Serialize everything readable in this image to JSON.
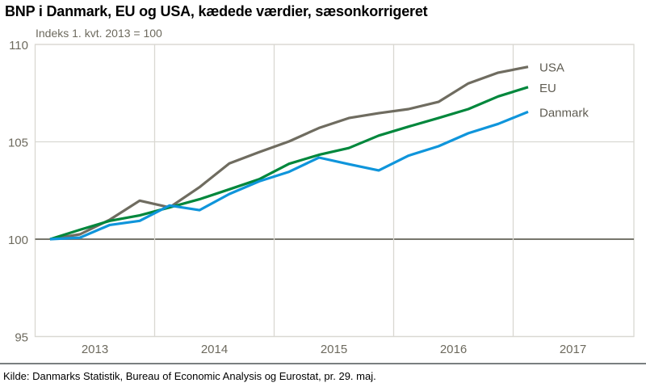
{
  "chart_data": {
    "type": "line",
    "title": "BNP i Danmark, EU og USA, kædede værdier, sæsonkorrigeret",
    "subtitle": "Indeks 1. kvt. 2013 = 100",
    "source": "Kilde: Danmarks Statistik, Bureau of Economic Analysis og Eurostat, pr. 29. maj.",
    "xlabel": "",
    "ylabel": "",
    "x": [
      "2013K1",
      "2013K2",
      "2013K3",
      "2013K4",
      "2014K1",
      "2014K2",
      "2014K3",
      "2014K4",
      "2015K1",
      "2015K2",
      "2015K3",
      "2015K4",
      "2016K1",
      "2016K2",
      "2016K3",
      "2016K4",
      "2017K1"
    ],
    "x_tick_labels": [
      "2013",
      "2014",
      "2015",
      "2016",
      "2017"
    ],
    "y_tick_labels": [
      "95",
      "100",
      "105",
      "110"
    ],
    "ylim": [
      95,
      110
    ],
    "grid": true,
    "legend": "inline-right",
    "series": [
      {
        "name": "USA",
        "color": "#6f6c60",
        "values": [
          100,
          100.25,
          101.0,
          101.98,
          101.63,
          102.67,
          103.89,
          104.47,
          105.02,
          105.71,
          106.22,
          106.47,
          106.68,
          107.05,
          108.0,
          108.55,
          108.85
        ]
      },
      {
        "name": "EU",
        "color": "#00873c",
        "values": [
          100,
          100.48,
          100.94,
          101.22,
          101.63,
          102.05,
          102.56,
          103.08,
          103.87,
          104.33,
          104.68,
          105.32,
          105.78,
          106.22,
          106.68,
          107.33,
          107.81
        ]
      },
      {
        "name": "Danmark",
        "color": "#0f95db",
        "values": [
          100,
          100.08,
          100.73,
          100.94,
          101.73,
          101.49,
          102.32,
          102.97,
          103.46,
          104.19,
          103.85,
          103.53,
          104.29,
          104.77,
          105.44,
          105.92,
          106.54
        ]
      }
    ]
  }
}
